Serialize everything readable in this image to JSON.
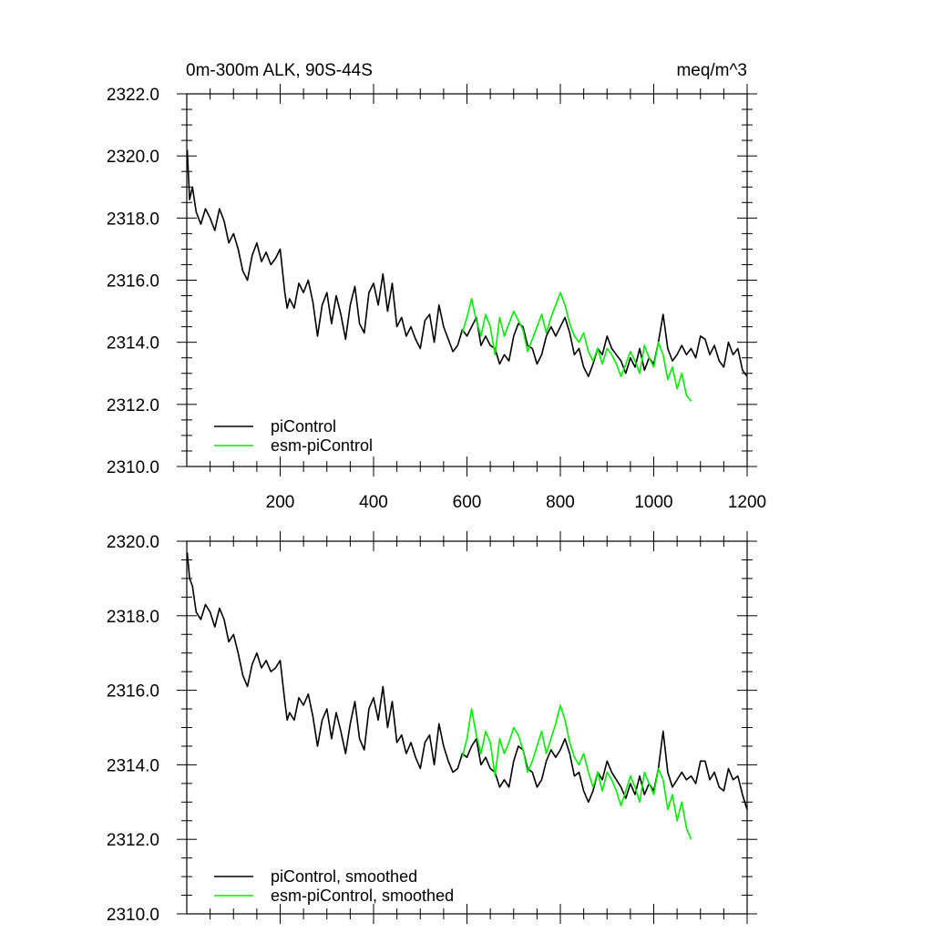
{
  "chart_data": [
    {
      "type": "line",
      "title_left": "0m-300m ALK, 90S-44S",
      "title_right": "meq/m^3",
      "xlim": [
        0,
        1200
      ],
      "ylim": [
        2310,
        2322
      ],
      "x_ticks": [
        200,
        400,
        600,
        800,
        1000,
        1200
      ],
      "x_tick_labels": [
        "200",
        "400",
        "600",
        "800",
        "1000",
        "1200"
      ],
      "y_ticks": [
        2310,
        2312,
        2314,
        2316,
        2318,
        2320,
        2322
      ],
      "y_tick_labels": [
        "2310.0",
        "2312.0",
        "2314.0",
        "2316.0",
        "2318.0",
        "2320.0",
        "2322.0"
      ],
      "legend": [
        "piControl",
        "esm-piControl"
      ],
      "series": [
        {
          "name": "piControl",
          "color": "#000000",
          "x": [
            1,
            6,
            12,
            20,
            30,
            40,
            50,
            60,
            70,
            80,
            90,
            100,
            110,
            120,
            130,
            140,
            150,
            160,
            170,
            180,
            190,
            200,
            210,
            215,
            220,
            230,
            240,
            250,
            260,
            270,
            280,
            290,
            300,
            310,
            320,
            330,
            340,
            350,
            360,
            370,
            380,
            390,
            400,
            410,
            420,
            430,
            440,
            450,
            460,
            470,
            480,
            490,
            500,
            510,
            520,
            530,
            540,
            550,
            560,
            570,
            580,
            590,
            600,
            610,
            620,
            630,
            640,
            650,
            660,
            670,
            680,
            690,
            700,
            710,
            720,
            730,
            740,
            750,
            760,
            770,
            780,
            790,
            800,
            810,
            820,
            830,
            840,
            850,
            860,
            870,
            880,
            890,
            900,
            910,
            920,
            930,
            940,
            950,
            960,
            970,
            980,
            990,
            1000,
            1010,
            1020,
            1030,
            1040,
            1050,
            1060,
            1070,
            1080,
            1090,
            1100,
            1110,
            1120,
            1130,
            1140,
            1150,
            1160,
            1170,
            1180,
            1190,
            1200
          ],
          "y": [
            2320.2,
            2318.6,
            2319.0,
            2318.2,
            2317.8,
            2318.3,
            2318.0,
            2317.6,
            2318.3,
            2317.9,
            2317.2,
            2317.5,
            2317.0,
            2316.3,
            2316.0,
            2316.8,
            2317.2,
            2316.6,
            2316.9,
            2316.5,
            2316.7,
            2317.0,
            2315.6,
            2315.1,
            2315.4,
            2315.1,
            2315.9,
            2315.6,
            2316.0,
            2315.3,
            2314.2,
            2315.2,
            2315.6,
            2314.6,
            2315.5,
            2314.9,
            2314.1,
            2315.2,
            2315.8,
            2314.6,
            2314.3,
            2315.6,
            2315.9,
            2315.2,
            2316.2,
            2315.0,
            2315.9,
            2314.5,
            2314.8,
            2314.2,
            2314.5,
            2314.1,
            2313.8,
            2314.7,
            2314.9,
            2314.0,
            2315.2,
            2314.5,
            2314.1,
            2313.7,
            2313.9,
            2314.4,
            2314.2,
            2314.5,
            2314.8,
            2313.9,
            2314.2,
            2313.9,
            2313.8,
            2313.3,
            2313.6,
            2313.4,
            2314.2,
            2314.6,
            2314.5,
            2313.9,
            2313.8,
            2313.3,
            2313.6,
            2314.2,
            2314.5,
            2314.2,
            2314.5,
            2314.8,
            2314.3,
            2313.6,
            2313.8,
            2313.2,
            2312.9,
            2313.3,
            2313.8,
            2313.6,
            2314.2,
            2313.8,
            2313.6,
            2313.4,
            2313.0,
            2313.5,
            2313.2,
            2313.8,
            2313.1,
            2313.5,
            2313.3,
            2314.0,
            2314.9,
            2313.8,
            2313.4,
            2313.6,
            2313.9,
            2313.6,
            2313.8,
            2313.5,
            2314.2,
            2314.1,
            2313.6,
            2313.9,
            2313.4,
            2313.2,
            2314.0,
            2313.6,
            2313.8,
            2313.1,
            2312.9
          ]
        },
        {
          "name": "esm-piControl",
          "color": "#00ee00",
          "x": [
            590,
            600,
            610,
            620,
            630,
            640,
            650,
            660,
            670,
            680,
            690,
            700,
            710,
            720,
            730,
            740,
            750,
            760,
            770,
            780,
            790,
            800,
            810,
            820,
            830,
            840,
            850,
            860,
            870,
            880,
            890,
            900,
            910,
            920,
            930,
            940,
            950,
            960,
            970,
            980,
            990,
            1000,
            1010,
            1020,
            1030,
            1040,
            1050,
            1060,
            1070,
            1080
          ],
          "y": [
            2314.3,
            2314.8,
            2315.4,
            2314.7,
            2314.2,
            2314.9,
            2314.5,
            2313.6,
            2314.8,
            2314.2,
            2314.6,
            2315.0,
            2314.7,
            2314.4,
            2313.7,
            2314.1,
            2314.5,
            2314.9,
            2314.3,
            2314.8,
            2315.2,
            2315.6,
            2315.2,
            2314.6,
            2314.2,
            2314.0,
            2314.3,
            2313.7,
            2313.4,
            2313.8,
            2313.3,
            2313.8,
            2313.6,
            2313.3,
            2312.9,
            2313.3,
            2313.7,
            2313.4,
            2313.0,
            2313.9,
            2313.5,
            2313.2,
            2314.0,
            2313.6,
            2312.8,
            2313.2,
            2312.5,
            2313.0,
            2312.3,
            2312.1
          ]
        }
      ]
    },
    {
      "type": "line",
      "xlim": [
        0,
        1200
      ],
      "ylim": [
        2310,
        2320
      ],
      "x_ticks": [
        200,
        400,
        600,
        800,
        1000,
        1200
      ],
      "y_ticks": [
        2310,
        2312,
        2314,
        2316,
        2318,
        2320
      ],
      "y_tick_labels": [
        "2310.0",
        "2312.0",
        "2314.0",
        "2316.0",
        "2318.0",
        "2320.0"
      ],
      "legend": [
        "piControl, smoothed",
        "esm-piControl, smoothed"
      ],
      "series": [
        {
          "name": "piControl, smoothed",
          "color": "#000000",
          "x": [
            1,
            6,
            12,
            20,
            30,
            40,
            50,
            60,
            70,
            80,
            90,
            100,
            110,
            120,
            130,
            140,
            150,
            160,
            170,
            180,
            190,
            200,
            210,
            215,
            220,
            230,
            240,
            250,
            260,
            270,
            280,
            290,
            300,
            310,
            320,
            330,
            340,
            350,
            360,
            370,
            380,
            390,
            400,
            410,
            420,
            430,
            440,
            450,
            460,
            470,
            480,
            490,
            500,
            510,
            520,
            530,
            540,
            550,
            560,
            570,
            580,
            590,
            600,
            610,
            620,
            630,
            640,
            650,
            660,
            670,
            680,
            690,
            700,
            710,
            720,
            730,
            740,
            750,
            760,
            770,
            780,
            790,
            800,
            810,
            820,
            830,
            840,
            850,
            860,
            870,
            880,
            890,
            900,
            910,
            920,
            930,
            940,
            950,
            960,
            970,
            980,
            990,
            1000,
            1010,
            1020,
            1030,
            1040,
            1050,
            1060,
            1070,
            1080,
            1090,
            1100,
            1110,
            1120,
            1130,
            1140,
            1150,
            1160,
            1170,
            1180,
            1190,
            1200
          ],
          "y": [
            2319.7,
            2319.0,
            2318.8,
            2318.1,
            2317.9,
            2318.3,
            2318.1,
            2317.7,
            2318.2,
            2317.9,
            2317.3,
            2317.5,
            2317.0,
            2316.4,
            2316.1,
            2316.7,
            2317.0,
            2316.6,
            2316.8,
            2316.5,
            2316.6,
            2316.8,
            2315.7,
            2315.2,
            2315.4,
            2315.2,
            2315.8,
            2315.6,
            2315.9,
            2315.3,
            2314.5,
            2315.2,
            2315.5,
            2314.7,
            2315.4,
            2314.9,
            2314.3,
            2315.1,
            2315.7,
            2314.7,
            2314.4,
            2315.5,
            2315.8,
            2315.2,
            2316.1,
            2315.0,
            2315.7,
            2314.6,
            2314.8,
            2314.3,
            2314.6,
            2314.2,
            2313.9,
            2314.6,
            2314.8,
            2314.0,
            2315.1,
            2314.5,
            2314.1,
            2313.8,
            2313.9,
            2314.3,
            2314.2,
            2314.5,
            2314.7,
            2314.0,
            2314.2,
            2313.9,
            2313.8,
            2313.4,
            2313.6,
            2313.4,
            2314.1,
            2314.5,
            2314.4,
            2313.9,
            2313.8,
            2313.4,
            2313.6,
            2314.1,
            2314.4,
            2314.2,
            2314.4,
            2314.7,
            2314.3,
            2313.7,
            2313.8,
            2313.3,
            2313.0,
            2313.3,
            2313.8,
            2313.6,
            2314.1,
            2313.8,
            2313.6,
            2313.4,
            2313.1,
            2313.5,
            2313.2,
            2313.7,
            2313.2,
            2313.5,
            2313.3,
            2313.9,
            2314.9,
            2313.8,
            2313.4,
            2313.6,
            2313.8,
            2313.6,
            2313.7,
            2313.5,
            2314.1,
            2314.1,
            2313.6,
            2313.8,
            2313.4,
            2313.3,
            2313.9,
            2313.6,
            2313.7,
            2313.2,
            2312.8
          ]
        },
        {
          "name": "esm-piControl, smoothed",
          "color": "#00ee00",
          "x": [
            590,
            600,
            610,
            620,
            630,
            640,
            650,
            660,
            670,
            680,
            690,
            700,
            710,
            720,
            730,
            740,
            750,
            760,
            770,
            780,
            790,
            800,
            810,
            820,
            830,
            840,
            850,
            860,
            870,
            880,
            890,
            900,
            910,
            920,
            930,
            940,
            950,
            960,
            970,
            980,
            990,
            1000,
            1010,
            1020,
            1030,
            1040,
            1050,
            1060,
            1070,
            1080
          ],
          "y": [
            2314.2,
            2314.7,
            2315.5,
            2314.8,
            2314.3,
            2314.9,
            2314.6,
            2313.7,
            2314.7,
            2314.3,
            2314.6,
            2315.0,
            2314.8,
            2314.4,
            2313.8,
            2314.1,
            2314.5,
            2314.9,
            2314.3,
            2314.7,
            2315.1,
            2315.6,
            2315.2,
            2314.6,
            2314.2,
            2314.0,
            2314.3,
            2313.8,
            2313.4,
            2313.8,
            2313.3,
            2313.8,
            2313.6,
            2313.3,
            2312.9,
            2313.3,
            2313.7,
            2313.4,
            2313.0,
            2313.8,
            2313.5,
            2313.2,
            2313.9,
            2313.6,
            2312.8,
            2313.2,
            2312.5,
            2313.0,
            2312.3,
            2312.0
          ]
        }
      ]
    }
  ]
}
